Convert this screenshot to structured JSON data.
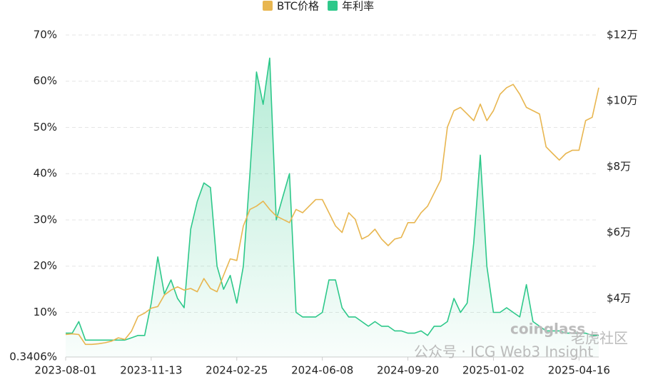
{
  "chart_data": {
    "type": "line",
    "categories": [
      "2023-08-01",
      null,
      null,
      null,
      null,
      null,
      null,
      null,
      null,
      null,
      null,
      null,
      null,
      "2023-11-13",
      null,
      null,
      null,
      null,
      null,
      null,
      null,
      null,
      null,
      null,
      null,
      null,
      "2024-02-25",
      null,
      null,
      null,
      null,
      null,
      null,
      null,
      null,
      null,
      null,
      null,
      null,
      "2024-06-08",
      null,
      null,
      null,
      null,
      null,
      null,
      null,
      null,
      null,
      null,
      null,
      null,
      "2024-09-20",
      null,
      null,
      null,
      null,
      null,
      null,
      null,
      null,
      null,
      null,
      null,
      null,
      "2025-01-02",
      null,
      null,
      null,
      null,
      null,
      null,
      null,
      null,
      null,
      null,
      null,
      null,
      "2025-04-16",
      null,
      null,
      null
    ],
    "series": [
      {
        "name": "BTC价格",
        "color": "#E8B650",
        "axis": "y2",
        "values": [
          29000,
          29200,
          29000,
          26000,
          26000,
          26200,
          26500,
          27000,
          28000,
          27500,
          30000,
          34500,
          35500,
          37000,
          37500,
          41000,
          42500,
          43500,
          42500,
          43000,
          42000,
          46000,
          43000,
          42000,
          47000,
          52000,
          51500,
          62000,
          67000,
          68000,
          69500,
          67000,
          65000,
          64000,
          63000,
          67000,
          66000,
          68000,
          70000,
          70000,
          66000,
          62000,
          60000,
          66000,
          64000,
          58000,
          59000,
          61000,
          58000,
          56000,
          58000,
          58500,
          63000,
          63000,
          66000,
          68000,
          72000,
          76000,
          92000,
          97000,
          98000,
          96000,
          94000,
          99000,
          94000,
          97000,
          102000,
          104000,
          105000,
          102000,
          98000,
          97000,
          96000,
          86000,
          84000,
          82000,
          84000,
          85000,
          85000,
          94000,
          95000,
          104000
        ]
      },
      {
        "name": "年利率",
        "color": "#2DC88A",
        "values": [
          5.5,
          5.5,
          8,
          4,
          4,
          4,
          4,
          4,
          4,
          4,
          4.5,
          5,
          5,
          12,
          22,
          14,
          17,
          13,
          11,
          28,
          34,
          38,
          37,
          20,
          15,
          18,
          12,
          20,
          40,
          62,
          55,
          65,
          30,
          35,
          40,
          10,
          9,
          9,
          9,
          10,
          17,
          17,
          11,
          9,
          9,
          8,
          7,
          8,
          7,
          7,
          6,
          6,
          5.5,
          5.5,
          6,
          5,
          7,
          7,
          8,
          13,
          10,
          12,
          25,
          44,
          20,
          10,
          10,
          11,
          10,
          9,
          16,
          8,
          7,
          6,
          6,
          6,
          5.5,
          5.5,
          5.5,
          5.5,
          5,
          5
        ]
      }
    ],
    "ylim": [
      0.3406,
      70
    ],
    "yticks": [
      {
        "value": 0.3406,
        "label": "0.3406%"
      },
      {
        "value": 10,
        "label": "10%"
      },
      {
        "value": 20,
        "label": "20%"
      },
      {
        "value": 30,
        "label": "30%"
      },
      {
        "value": 40,
        "label": "40%"
      },
      {
        "value": 50,
        "label": "50%"
      },
      {
        "value": 60,
        "label": "60%"
      },
      {
        "value": 70,
        "label": "70%"
      }
    ],
    "y2lim": [
      22170,
      120000
    ],
    "y2ticks": [
      {
        "value": 40000,
        "label": "$4万"
      },
      {
        "value": 60000,
        "label": "$6万"
      },
      {
        "value": 80000,
        "label": "$8万"
      },
      {
        "value": 100000,
        "label": "$10万"
      },
      {
        "value": 120000,
        "label": "$12万"
      }
    ],
    "grid": true,
    "legend": "top",
    "annotations": [
      "coinglass",
      "公众号 · ICG Web3 Insight",
      "老虎社区"
    ]
  }
}
